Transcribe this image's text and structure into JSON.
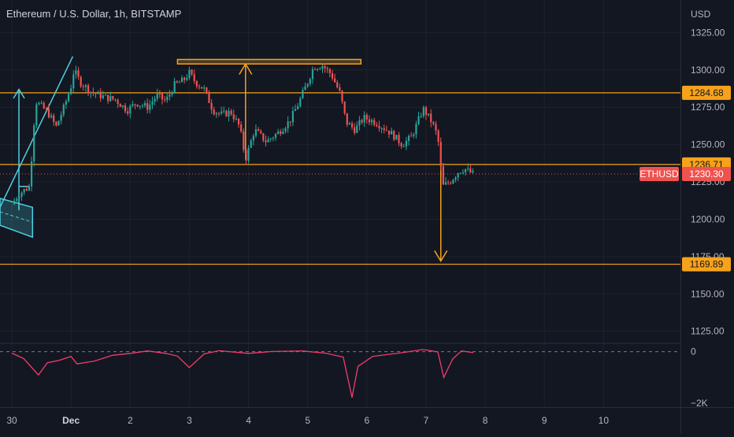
{
  "header": {
    "title": "Ethereum / U.S. Dollar, 1h, BITSTAMP"
  },
  "currency_label": "USD",
  "chart_data": [
    {
      "type": "candlestick",
      "symbol": "ETHUSD",
      "last_price": "1230.30",
      "y_range": [
        1118,
        1331
      ],
      "y_ticks": [
        "1325.00",
        "1300.00",
        "1275.00",
        "1250.00",
        "1225.00",
        "1200.00",
        "1175.00",
        "1150.00",
        "1125.00"
      ],
      "x_ticks": [
        "30",
        "Dec",
        "2",
        "3",
        "4",
        "5",
        "6",
        "7",
        "8",
        "9",
        "10"
      ],
      "x_range": [
        -0.2,
        11.3
      ],
      "levels": [
        {
          "value": 1284.68,
          "label": "1284.68"
        },
        {
          "value": 1236.71,
          "label": "1236.71"
        },
        {
          "value": 1169.89,
          "label": "1169.89"
        }
      ],
      "colors": {
        "up": "#26a69a",
        "down": "#ef5350",
        "level": "#f7a21b",
        "pattern": "#4dd0e1",
        "indicator": "#f23c6b"
      },
      "anchors": [
        [
          0.0,
          1210
        ],
        [
          0.12,
          1217
        ],
        [
          0.3,
          1222
        ],
        [
          0.4,
          1279
        ],
        [
          0.6,
          1272
        ],
        [
          0.75,
          1262
        ],
        [
          0.9,
          1277
        ],
        [
          1.0,
          1289
        ],
        [
          1.05,
          1300
        ],
        [
          1.15,
          1292
        ],
        [
          1.35,
          1285
        ],
        [
          1.55,
          1282
        ],
        [
          1.75,
          1280
        ],
        [
          1.95,
          1273
        ],
        [
          2.1,
          1278
        ],
        [
          2.3,
          1275
        ],
        [
          2.45,
          1283
        ],
        [
          2.6,
          1279
        ],
        [
          2.75,
          1290
        ],
        [
          2.9,
          1293
        ],
        [
          3.0,
          1298
        ],
        [
          3.1,
          1292
        ],
        [
          3.25,
          1287
        ],
        [
          3.4,
          1273
        ],
        [
          3.55,
          1270
        ],
        [
          3.7,
          1272
        ],
        [
          3.85,
          1262
        ],
        [
          3.95,
          1240
        ],
        [
          4.1,
          1260
        ],
        [
          4.3,
          1252
        ],
        [
          4.5,
          1258
        ],
        [
          4.7,
          1266
        ],
        [
          4.85,
          1278
        ],
        [
          5.0,
          1292
        ],
        [
          5.1,
          1302
        ],
        [
          5.25,
          1303
        ],
        [
          5.4,
          1297
        ],
        [
          5.55,
          1284
        ],
        [
          5.65,
          1265
        ],
        [
          5.8,
          1260
        ],
        [
          5.95,
          1268
        ],
        [
          6.15,
          1265
        ],
        [
          6.4,
          1258
        ],
        [
          6.6,
          1250
        ],
        [
          6.75,
          1255
        ],
        [
          6.85,
          1264
        ],
        [
          6.95,
          1274
        ],
        [
          7.1,
          1265
        ],
        [
          7.2,
          1255
        ],
        [
          7.28,
          1222
        ],
        [
          7.4,
          1225
        ],
        [
          7.55,
          1232
        ],
        [
          7.65,
          1234
        ],
        [
          7.8,
          1230
        ]
      ],
      "indicator": {
        "zero_label": "0",
        "min_label": "−2K",
        "range": [
          -2100,
          150
        ],
        "anchors": [
          [
            0.0,
            -60
          ],
          [
            0.2,
            -280
          ],
          [
            0.45,
            -950
          ],
          [
            0.6,
            -450
          ],
          [
            0.8,
            -350
          ],
          [
            1.0,
            -190
          ],
          [
            1.1,
            -500
          ],
          [
            1.4,
            -380
          ],
          [
            1.7,
            -150
          ],
          [
            2.0,
            -70
          ],
          [
            2.3,
            30
          ],
          [
            2.6,
            -70
          ],
          [
            2.8,
            -180
          ],
          [
            3.0,
            -650
          ],
          [
            3.25,
            -90
          ],
          [
            3.5,
            40
          ],
          [
            4.0,
            -70
          ],
          [
            4.4,
            10
          ],
          [
            4.9,
            30
          ],
          [
            5.3,
            -60
          ],
          [
            5.6,
            -220
          ],
          [
            5.75,
            -1870
          ],
          [
            5.85,
            -600
          ],
          [
            6.1,
            -190
          ],
          [
            6.6,
            -40
          ],
          [
            6.95,
            90
          ],
          [
            7.2,
            -10
          ],
          [
            7.3,
            -1050
          ],
          [
            7.45,
            -300
          ],
          [
            7.6,
            30
          ],
          [
            7.8,
            -40
          ]
        ]
      }
    }
  ]
}
